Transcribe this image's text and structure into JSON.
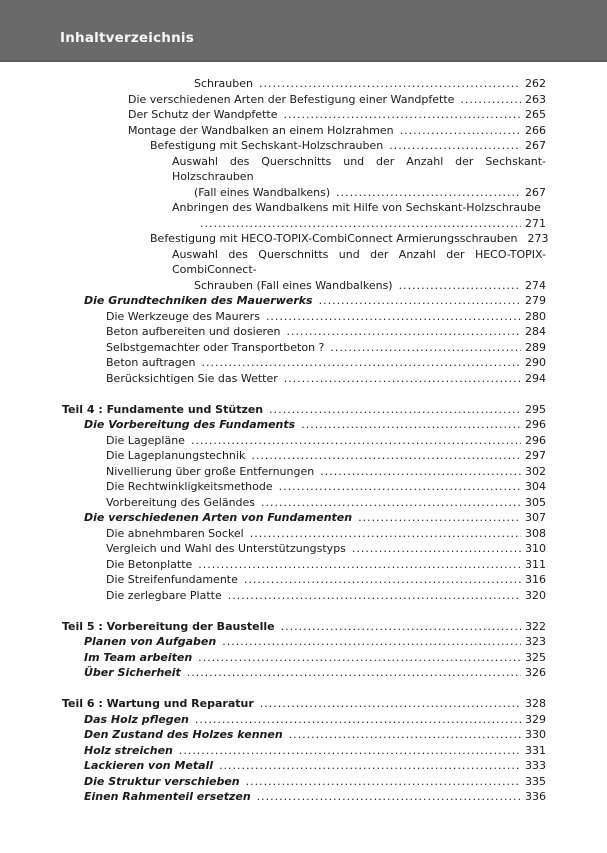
{
  "header": {
    "title": "Inhaltverzeichnis",
    "band_color": "#6a6a6a",
    "title_color": "#f7f7f7"
  },
  "toc": {
    "entries": [
      {
        "text": "Schrauben",
        "page": "262",
        "indent": 6,
        "style": "normal"
      },
      {
        "text": "Die verschiedenen Arten der Befestigung einer Wandpfette",
        "page": "263",
        "indent": 3,
        "style": "normal"
      },
      {
        "text": "Der Schutz der Wandpfette",
        "page": "265",
        "indent": 3,
        "style": "normal"
      },
      {
        "text": "Montage der Wandbalken an einem Holzrahmen",
        "page": "266",
        "indent": 3,
        "style": "normal"
      },
      {
        "text": "Befestigung mit Sechskant-Holzschrauben",
        "page": "267",
        "indent": 4,
        "style": "normal"
      },
      {
        "text": "Auswahl des Querschnitts und der Anzahl der Sechskant-Holzschrauben",
        "page": null,
        "indent": 5,
        "style": "normal",
        "justified": true
      },
      {
        "text": "(Fall eines Wandbalkens)",
        "page": "267",
        "indent": 6,
        "style": "normal"
      },
      {
        "text": "Anbringen des Wandbalkens mit Hilfe von Sechskant-Holzschraube",
        "page": null,
        "indent": 5,
        "style": "normal"
      },
      {
        "text": "",
        "page": "271",
        "indent": 6,
        "style": "normal"
      },
      {
        "text": "Befestigung mit HECO-TOPIX-CombiConnect Armierungsschrauben",
        "page": "273",
        "indent": 4,
        "style": "normal"
      },
      {
        "text": "Auswahl des Querschnitts und der Anzahl der HECO-TOPIX-CombiConnect-",
        "page": null,
        "indent": 5,
        "style": "normal",
        "justified": true
      },
      {
        "text": "Schrauben (Fall eines Wandbalkens)",
        "page": "274",
        "indent": 6,
        "style": "normal"
      },
      {
        "text": "Die Grundtechniken des Mauerwerks",
        "page": "279",
        "indent": 1,
        "style": "bolditalic"
      },
      {
        "text": "Die Werkzeuge des Maurers",
        "page": "280",
        "indent": 2,
        "style": "normal"
      },
      {
        "text": "Beton aufbereiten und dosieren",
        "page": "284",
        "indent": 2,
        "style": "normal"
      },
      {
        "text": "Selbstgemachter oder Transportbeton ?",
        "page": "289",
        "indent": 2,
        "style": "normal"
      },
      {
        "text": "Beton auftragen",
        "page": "290",
        "indent": 2,
        "style": "normal"
      },
      {
        "text": "Berücksichtigen Sie das Wetter",
        "page": "294",
        "indent": 2,
        "style": "normal"
      },
      {
        "text": "Teil 4 : Fundamente und Stützen",
        "page": "295",
        "indent": 0,
        "style": "bold",
        "gap_before": true
      },
      {
        "text": "Die Vorbereitung des Fundaments",
        "page": "296",
        "indent": 1,
        "style": "bolditalic"
      },
      {
        "text": "Die Lagepläne",
        "page": "296",
        "indent": 2,
        "style": "normal"
      },
      {
        "text": "Die Lageplanungstechnik",
        "page": "297",
        "indent": 2,
        "style": "normal"
      },
      {
        "text": "Nivellierung über große Entfernungen",
        "page": "302",
        "indent": 2,
        "style": "normal"
      },
      {
        "text": "Die Rechtwinkligkeitsmethode",
        "page": "304",
        "indent": 2,
        "style": "normal"
      },
      {
        "text": "Vorbereitung des Geländes",
        "page": "305",
        "indent": 2,
        "style": "normal"
      },
      {
        "text": "Die verschiedenen Arten von Fundamenten",
        "page": "307",
        "indent": 1,
        "style": "bolditalic"
      },
      {
        "text": "Die abnehmbaren Sockel",
        "page": "308",
        "indent": 2,
        "style": "normal"
      },
      {
        "text": "Vergleich und Wahl des Unterstützungstyps",
        "page": "310",
        "indent": 2,
        "style": "normal"
      },
      {
        "text": "Die Betonplatte",
        "page": "311",
        "indent": 2,
        "style": "normal"
      },
      {
        "text": "Die Streifenfundamente",
        "page": "316",
        "indent": 2,
        "style": "normal"
      },
      {
        "text": "Die zerlegbare Platte",
        "page": "320",
        "indent": 2,
        "style": "normal"
      },
      {
        "text": "Teil 5 : Vorbereitung der Baustelle",
        "page": "322",
        "indent": 0,
        "style": "bold",
        "gap_before": true
      },
      {
        "text": "Planen von Aufgaben",
        "page": "323",
        "indent": 1,
        "style": "bolditalic"
      },
      {
        "text": "Im Team arbeiten",
        "page": "325",
        "indent": 1,
        "style": "bolditalic"
      },
      {
        "text": "Über Sicherheit",
        "page": "326",
        "indent": 1,
        "style": "bolditalic"
      },
      {
        "text": "Teil 6 : Wartung und Reparatur",
        "page": "328",
        "indent": 0,
        "style": "bold",
        "gap_before": true
      },
      {
        "text": "Das Holz pflegen",
        "page": "329",
        "indent": 1,
        "style": "bolditalic"
      },
      {
        "text": "Den Zustand des Holzes kennen",
        "page": "330",
        "indent": 1,
        "style": "bolditalic"
      },
      {
        "text": "Holz streichen",
        "page": "331",
        "indent": 1,
        "style": "bolditalic"
      },
      {
        "text": "Lackieren von Metall",
        "page": "333",
        "indent": 1,
        "style": "bolditalic"
      },
      {
        "text": "Die Struktur verschieben",
        "page": "335",
        "indent": 1,
        "style": "bolditalic"
      },
      {
        "text": "Einen Rahmenteil ersetzen",
        "page": "336",
        "indent": 1,
        "style": "bolditalic"
      }
    ]
  }
}
